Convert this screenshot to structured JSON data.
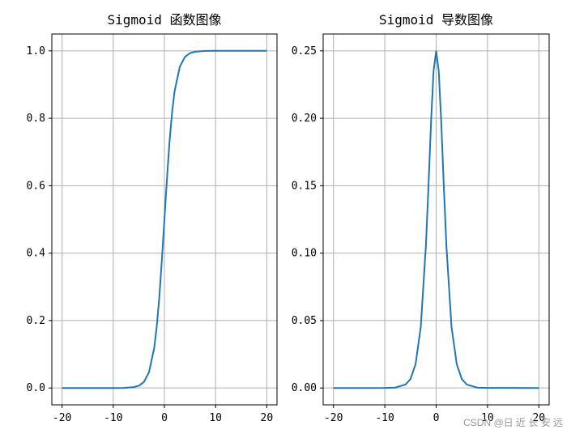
{
  "chart_data": [
    {
      "type": "line",
      "title": "Sigmoid 函数图像",
      "xlabel": "",
      "ylabel": "",
      "xlim": [
        -22,
        22
      ],
      "ylim": [
        -0.05,
        1.05
      ],
      "xticks": [
        -20,
        -10,
        0,
        10,
        20
      ],
      "xtick_labels": [
        "-20",
        "-10",
        "0",
        "10",
        "20"
      ],
      "yticks": [
        0.0,
        0.2,
        0.4,
        0.6,
        0.8,
        1.0
      ],
      "ytick_labels": [
        "0.0",
        "0.2",
        "0.4",
        "0.6",
        "0.8",
        "1.0"
      ],
      "grid": true,
      "series": [
        {
          "color": "#1f77b4",
          "x": [
            -20,
            -10,
            -8,
            -6,
            -5,
            -4,
            -3,
            -2,
            -1.5,
            -1,
            -0.5,
            0,
            0.5,
            1,
            1.5,
            2,
            3,
            4,
            5,
            6,
            8,
            10,
            20
          ],
          "y": [
            0.0,
            0.0,
            0.0003,
            0.0025,
            0.0067,
            0.018,
            0.047,
            0.119,
            0.182,
            0.269,
            0.378,
            0.5,
            0.622,
            0.731,
            0.818,
            0.881,
            0.953,
            0.982,
            0.9933,
            0.9975,
            0.9997,
            1.0,
            1.0
          ]
        }
      ]
    },
    {
      "type": "line",
      "title": "Sigmoid 导数图像",
      "xlabel": "",
      "ylabel": "",
      "xlim": [
        -22,
        22
      ],
      "ylim": [
        -0.0125,
        0.2625
      ],
      "xticks": [
        -20,
        -10,
        0,
        10,
        20
      ],
      "xtick_labels": [
        "-20",
        "-10",
        "0",
        "10",
        "20"
      ],
      "yticks": [
        0.0,
        0.05,
        0.1,
        0.15,
        0.2,
        0.25
      ],
      "ytick_labels": [
        "0.00",
        "0.05",
        "0.10",
        "0.15",
        "0.20",
        "0.25"
      ],
      "grid": true,
      "series": [
        {
          "color": "#1f77b4",
          "x": [
            -20,
            -10,
            -8,
            -6,
            -5,
            -4,
            -3,
            -2,
            -1.5,
            -1,
            -0.5,
            0,
            0.5,
            1,
            1.5,
            2,
            3,
            4,
            5,
            6,
            8,
            10,
            20
          ],
          "y": [
            0.0,
            5e-05,
            0.0003,
            0.0025,
            0.0066,
            0.0177,
            0.0452,
            0.105,
            0.149,
            0.197,
            0.235,
            0.25,
            0.235,
            0.197,
            0.149,
            0.105,
            0.0452,
            0.0177,
            0.0066,
            0.0025,
            0.0003,
            5e-05,
            0.0
          ]
        }
      ]
    }
  ],
  "watermark": "CSDN @日 近 长 安 远"
}
